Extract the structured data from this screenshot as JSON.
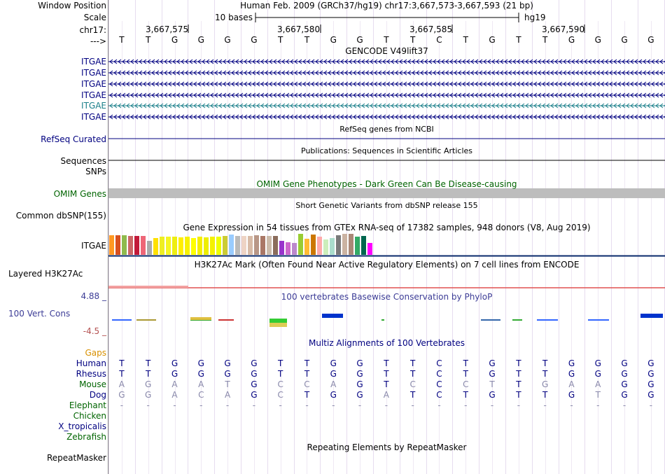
{
  "labels": {
    "window_position": "Window Position",
    "scale": "Scale",
    "chr": "chr17:",
    "arrow": "--->",
    "itgae": [
      "ITGAE",
      "ITGAE",
      "ITGAE",
      "ITGAE",
      "ITGAE",
      "ITGAE"
    ],
    "refseq": "RefSeq Curated",
    "sequences": "Sequences",
    "snps": "SNPs",
    "omim": "OMIM Genes",
    "dbsnp": "Common dbSNP(155)",
    "gtex_gene": "ITGAE",
    "h3k27ac": "Layered H3K27Ac",
    "phylop_max": "4.88 _",
    "phylop_name": "100 Vert. Cons",
    "phylop_min": "-4.5 _",
    "gaps": "Gaps",
    "species": [
      "Human",
      "Rhesus",
      "Mouse",
      "Dog",
      "Elephant",
      "Chicken",
      "X_tropicalis",
      "Zebrafish"
    ],
    "repeatmasker": "RepeatMasker"
  },
  "header": {
    "assembly": "Human Feb. 2009 (GRCh37/hg19)   chr17:3,667,573-3,667,593 (21 bp)",
    "scale_text": "10 bases",
    "db": "hg19",
    "coords": [
      "3,667,575",
      "3,667,580",
      "3,667,585",
      "3,667,590"
    ]
  },
  "sequence": [
    "T",
    "T",
    "G",
    "G",
    "G",
    "G",
    "T",
    "T",
    "G",
    "G",
    "T",
    "T",
    "C",
    "T",
    "G",
    "T",
    "T",
    "G",
    "G",
    "G",
    "G"
  ],
  "titles": {
    "gencode": "GENCODE V49lift37",
    "refseq": "RefSeq genes from NCBI",
    "pubs": "Publications: Sequences in Scientific Articles",
    "omim": "OMIM Gene Phenotypes - Dark Green Can Be Disease-causing",
    "dbsnp": "Short Genetic Variants from dbSNP release 155",
    "gtex": "Gene Expression in 54 tissues from GTEx RNA-seq of 17382 samples, 948 donors (V8, Aug 2019)",
    "h3k27ac": "H3K27Ac Mark (Often Found Near Active Regulatory Elements) on 7 cell lines from ENCODE",
    "phylop": "100 vertebrates Basewise Conservation by PhyloP",
    "multiz": "Multiz Alignments of 100 Vertebrates",
    "repeat": "Repeating Elements by RepeatMasker"
  },
  "alignment": {
    "Human": [
      "T",
      "T",
      "G",
      "G",
      "G",
      "G",
      "T",
      "T",
      "G",
      "G",
      "T",
      "T",
      "C",
      "T",
      "G",
      "T",
      "T",
      "G",
      "G",
      "G",
      "G"
    ],
    "Rhesus": [
      "T",
      "T",
      "G",
      "G",
      "G",
      "G",
      "T",
      "T",
      "G",
      "G",
      "T",
      "T",
      "C",
      "T",
      "G",
      "T",
      "T",
      "G",
      "G",
      "G",
      "G"
    ],
    "Mouse": [
      "A",
      "G",
      "A",
      "A",
      "T",
      "G",
      "C",
      "C",
      "A",
      "G",
      "T",
      "C",
      "C",
      "C",
      "T",
      "T",
      "G",
      "A",
      "A",
      "G",
      "G"
    ],
    "Dog": [
      "G",
      "G",
      "A",
      "C",
      "A",
      "G",
      "C",
      "T",
      "G",
      "G",
      "A",
      "T",
      "C",
      "T",
      "G",
      "T",
      "T",
      "G",
      "T",
      "G",
      "G"
    ],
    "Elephant": [
      "-",
      "-",
      "-",
      "-",
      "-",
      "-",
      "-",
      "-",
      "-",
      "-",
      "-",
      "-",
      "-",
      "-",
      "-",
      "-",
      "-",
      "-",
      "-",
      "-",
      "-"
    ]
  },
  "colors": {
    "navy": "#000080",
    "teal": "#1a7f8a",
    "omim_green": "#006400",
    "phylop_blue": "#3c3c96",
    "gaps_orange": "#d89000",
    "h3k_red": "#e05050",
    "max_brown": "#b45050",
    "gtex_bars": [
      "#ff9922",
      "#d8501e",
      "#8fba4d",
      "#cc6666",
      "#c21a3a",
      "#ee6677",
      "#aaaaaa",
      "#ffe100",
      "#eeee22",
      "#f5f522",
      "#eeee11",
      "#ffee00",
      "#f7f100",
      "#ffff00",
      "#f5ee00",
      "#eeee00",
      "#f4f100",
      "#eeff00",
      "#cccc33",
      "#99ccff",
      "#bbbbbb",
      "#eed3c4",
      "#d8bba7",
      "#b89787",
      "#aa7766",
      "#ccbbaa",
      "#8b6d5c",
      "#9933cc",
      "#cc66cc",
      "#bb88cc",
      "#99cc33",
      "#ffbb33",
      "#cc7700",
      "#ffaaaa",
      "#cceebb",
      "#aaddcc",
      "#7a7a7a",
      "#cbb3a2",
      "#aa8877",
      "#33aa66",
      "#00664f",
      "#ff00ff"
    ]
  }
}
